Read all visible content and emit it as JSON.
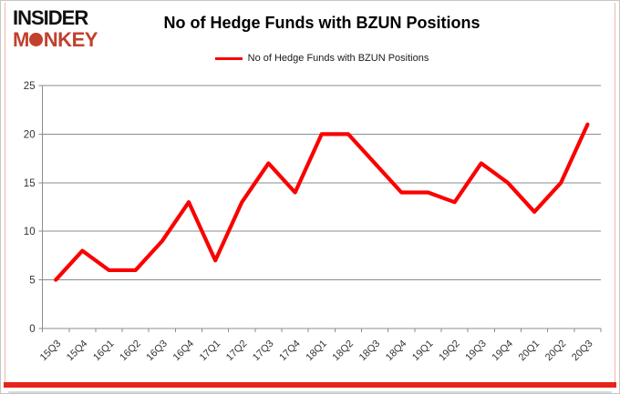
{
  "logo": {
    "line1": "INSIDER",
    "line2": "MONKEY"
  },
  "header": {
    "title": "No of Hedge Funds with BZUN Positions"
  },
  "legend": {
    "label": "No of Hedge Funds with BZUN Positions"
  },
  "colors": {
    "line": "#fb0000",
    "logo_black": "#111111",
    "logo_red": "#c2402d",
    "gridline": "#8c8c8c",
    "axis_text": "#333333",
    "bottom_bar_red": "#e8231c"
  },
  "chart_data": {
    "type": "line",
    "title": "No of Hedge Funds with BZUN Positions",
    "categories": [
      "15Q3",
      "15Q4",
      "16Q1",
      "16Q2",
      "16Q3",
      "16Q4",
      "17Q1",
      "17Q2",
      "17Q3",
      "17Q4",
      "18Q1",
      "18Q2",
      "18Q3",
      "18Q4",
      "19Q1",
      "19Q2",
      "19Q3",
      "19Q4",
      "20Q1",
      "20Q2",
      "20Q3"
    ],
    "series": [
      {
        "name": "No of Hedge Funds with BZUN Positions",
        "values": [
          5,
          8,
          6,
          6,
          9,
          13,
          7,
          13,
          17,
          14,
          20,
          20,
          17,
          14,
          14,
          13,
          17,
          15,
          12,
          15,
          21
        ]
      }
    ],
    "xlabel": "",
    "ylabel": "",
    "ylim": [
      0,
      25
    ],
    "yticks": [
      0,
      5,
      10,
      15,
      20,
      25
    ],
    "grid": "horizontal",
    "legend_position": "top-center"
  }
}
